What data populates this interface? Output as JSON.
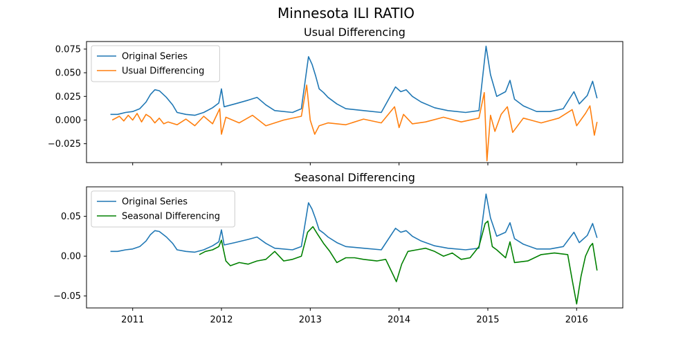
{
  "figure": {
    "suptitle": "Minnesota ILI RATIO"
  },
  "chart_data": [
    {
      "type": "line",
      "title": "Usual Differencing",
      "xlabel": "",
      "ylabel": "",
      "xlim": [
        2010.48,
        2016.52
      ],
      "ylim": [
        -0.045,
        0.083
      ],
      "yticks": [
        -0.025,
        0.0,
        0.025,
        0.05,
        0.075
      ],
      "ytick_labels": [
        "−0.025",
        "0.000",
        "0.025",
        "0.050",
        "0.075"
      ],
      "xticks": [
        2011,
        2012,
        2013,
        2014,
        2015,
        2016
      ],
      "xtick_labels": [
        "2011",
        "2012",
        "2013",
        "2014",
        "2015",
        "2016"
      ],
      "show_xtick_labels": false,
      "grid": false,
      "legend": "top-left",
      "series": [
        {
          "name": "Original Series",
          "color": "#1f77b4",
          "points": [
            [
              2010.75,
              0.006
            ],
            [
              2010.83,
              0.006
            ],
            [
              2010.92,
              0.008
            ],
            [
              2011.0,
              0.009
            ],
            [
              2011.08,
              0.012
            ],
            [
              2011.15,
              0.019
            ],
            [
              2011.2,
              0.027
            ],
            [
              2011.25,
              0.032
            ],
            [
              2011.3,
              0.031
            ],
            [
              2011.38,
              0.024
            ],
            [
              2011.45,
              0.016
            ],
            [
              2011.5,
              0.008
            ],
            [
              2011.6,
              0.006
            ],
            [
              2011.7,
              0.005
            ],
            [
              2011.8,
              0.008
            ],
            [
              2011.9,
              0.013
            ],
            [
              2011.97,
              0.018
            ],
            [
              2012.0,
              0.033
            ],
            [
              2012.03,
              0.014
            ],
            [
              2012.15,
              0.017
            ],
            [
              2012.3,
              0.021
            ],
            [
              2012.4,
              0.024
            ],
            [
              2012.5,
              0.016
            ],
            [
              2012.6,
              0.01
            ],
            [
              2012.8,
              0.008
            ],
            [
              2012.9,
              0.012
            ],
            [
              2012.98,
              0.067
            ],
            [
              2013.02,
              0.059
            ],
            [
              2013.06,
              0.047
            ],
            [
              2013.1,
              0.033
            ],
            [
              2013.15,
              0.029
            ],
            [
              2013.2,
              0.024
            ],
            [
              2013.3,
              0.017
            ],
            [
              2013.4,
              0.012
            ],
            [
              2013.6,
              0.01
            ],
            [
              2013.8,
              0.008
            ],
            [
              2013.96,
              0.035
            ],
            [
              2014.02,
              0.03
            ],
            [
              2014.08,
              0.032
            ],
            [
              2014.15,
              0.025
            ],
            [
              2014.25,
              0.019
            ],
            [
              2014.4,
              0.013
            ],
            [
              2014.55,
              0.01
            ],
            [
              2014.75,
              0.008
            ],
            [
              2014.9,
              0.01
            ],
            [
              2014.98,
              0.078
            ],
            [
              2015.03,
              0.048
            ],
            [
              2015.1,
              0.025
            ],
            [
              2015.2,
              0.03
            ],
            [
              2015.25,
              0.042
            ],
            [
              2015.3,
              0.022
            ],
            [
              2015.4,
              0.015
            ],
            [
              2015.55,
              0.009
            ],
            [
              2015.7,
              0.009
            ],
            [
              2015.85,
              0.012
            ],
            [
              2015.97,
              0.03
            ],
            [
              2016.03,
              0.017
            ],
            [
              2016.12,
              0.026
            ],
            [
              2016.18,
              0.041
            ],
            [
              2016.23,
              0.023
            ]
          ]
        },
        {
          "name": "Usual Differencing",
          "color": "#ff7f0e",
          "points": [
            [
              2010.77,
              0.0
            ],
            [
              2010.85,
              0.004
            ],
            [
              2010.9,
              -0.001
            ],
            [
              2010.95,
              0.005
            ],
            [
              2011.0,
              0.0
            ],
            [
              2011.05,
              0.007
            ],
            [
              2011.1,
              -0.002
            ],
            [
              2011.15,
              0.006
            ],
            [
              2011.2,
              0.003
            ],
            [
              2011.25,
              -0.003
            ],
            [
              2011.3,
              0.002
            ],
            [
              2011.35,
              -0.004
            ],
            [
              2011.4,
              -0.002
            ],
            [
              2011.5,
              -0.005
            ],
            [
              2011.6,
              0.001
            ],
            [
              2011.7,
              -0.006
            ],
            [
              2011.8,
              0.004
            ],
            [
              2011.9,
              -0.004
            ],
            [
              2011.98,
              0.012
            ],
            [
              2012.0,
              -0.015
            ],
            [
              2012.05,
              0.003
            ],
            [
              2012.2,
              -0.003
            ],
            [
              2012.35,
              0.005
            ],
            [
              2012.5,
              -0.006
            ],
            [
              2012.7,
              0.0
            ],
            [
              2012.9,
              0.004
            ],
            [
              2012.96,
              0.037
            ],
            [
              2013.0,
              0.0
            ],
            [
              2013.05,
              -0.015
            ],
            [
              2013.1,
              -0.006
            ],
            [
              2013.2,
              -0.003
            ],
            [
              2013.4,
              -0.005
            ],
            [
              2013.6,
              0.001
            ],
            [
              2013.8,
              -0.003
            ],
            [
              2013.95,
              0.014
            ],
            [
              2014.0,
              -0.008
            ],
            [
              2014.05,
              0.006
            ],
            [
              2014.15,
              -0.004
            ],
            [
              2014.3,
              -0.002
            ],
            [
              2014.5,
              0.003
            ],
            [
              2014.7,
              -0.002
            ],
            [
              2014.9,
              0.002
            ],
            [
              2014.96,
              0.029
            ],
            [
              2014.99,
              -0.043
            ],
            [
              2015.03,
              0.005
            ],
            [
              2015.08,
              -0.012
            ],
            [
              2015.15,
              0.006
            ],
            [
              2015.22,
              0.014
            ],
            [
              2015.28,
              -0.013
            ],
            [
              2015.4,
              0.002
            ],
            [
              2015.6,
              -0.003
            ],
            [
              2015.8,
              0.002
            ],
            [
              2015.95,
              0.011
            ],
            [
              2016.0,
              -0.006
            ],
            [
              2016.1,
              0.007
            ],
            [
              2016.15,
              0.015
            ],
            [
              2016.2,
              -0.016
            ],
            [
              2016.23,
              -0.002
            ]
          ]
        }
      ]
    },
    {
      "type": "line",
      "title": "Seasonal Differencing",
      "xlabel": "",
      "ylabel": "",
      "xlim": [
        2010.48,
        2016.52
      ],
      "ylim": [
        -0.065,
        0.087
      ],
      "yticks": [
        -0.05,
        0.0,
        0.05
      ],
      "ytick_labels": [
        "−0.05",
        "0.00",
        "0.05"
      ],
      "xticks": [
        2011,
        2012,
        2013,
        2014,
        2015,
        2016
      ],
      "xtick_labels": [
        "2011",
        "2012",
        "2013",
        "2014",
        "2015",
        "2016"
      ],
      "show_xtick_labels": true,
      "grid": false,
      "legend": "top-left",
      "series": [
        {
          "name": "Original Series",
          "color": "#1f77b4",
          "points": [
            [
              2010.75,
              0.006
            ],
            [
              2010.83,
              0.006
            ],
            [
              2010.92,
              0.008
            ],
            [
              2011.0,
              0.009
            ],
            [
              2011.08,
              0.012
            ],
            [
              2011.15,
              0.019
            ],
            [
              2011.2,
              0.027
            ],
            [
              2011.25,
              0.032
            ],
            [
              2011.3,
              0.031
            ],
            [
              2011.38,
              0.024
            ],
            [
              2011.45,
              0.016
            ],
            [
              2011.5,
              0.008
            ],
            [
              2011.6,
              0.006
            ],
            [
              2011.7,
              0.005
            ],
            [
              2011.8,
              0.008
            ],
            [
              2011.9,
              0.013
            ],
            [
              2011.97,
              0.018
            ],
            [
              2012.0,
              0.033
            ],
            [
              2012.03,
              0.014
            ],
            [
              2012.15,
              0.017
            ],
            [
              2012.3,
              0.021
            ],
            [
              2012.4,
              0.024
            ],
            [
              2012.5,
              0.016
            ],
            [
              2012.6,
              0.01
            ],
            [
              2012.8,
              0.008
            ],
            [
              2012.9,
              0.012
            ],
            [
              2012.98,
              0.067
            ],
            [
              2013.02,
              0.059
            ],
            [
              2013.06,
              0.047
            ],
            [
              2013.1,
              0.033
            ],
            [
              2013.15,
              0.029
            ],
            [
              2013.2,
              0.024
            ],
            [
              2013.3,
              0.017
            ],
            [
              2013.4,
              0.012
            ],
            [
              2013.6,
              0.01
            ],
            [
              2013.8,
              0.008
            ],
            [
              2013.96,
              0.035
            ],
            [
              2014.02,
              0.03
            ],
            [
              2014.08,
              0.032
            ],
            [
              2014.15,
              0.025
            ],
            [
              2014.25,
              0.019
            ],
            [
              2014.4,
              0.013
            ],
            [
              2014.55,
              0.01
            ],
            [
              2014.75,
              0.008
            ],
            [
              2014.9,
              0.01
            ],
            [
              2014.98,
              0.078
            ],
            [
              2015.03,
              0.048
            ],
            [
              2015.1,
              0.025
            ],
            [
              2015.2,
              0.03
            ],
            [
              2015.25,
              0.042
            ],
            [
              2015.3,
              0.022
            ],
            [
              2015.4,
              0.015
            ],
            [
              2015.55,
              0.009
            ],
            [
              2015.7,
              0.009
            ],
            [
              2015.85,
              0.012
            ],
            [
              2015.97,
              0.03
            ],
            [
              2016.03,
              0.017
            ],
            [
              2016.12,
              0.026
            ],
            [
              2016.18,
              0.041
            ],
            [
              2016.23,
              0.023
            ]
          ]
        },
        {
          "name": "Seasonal Differencing",
          "color": "#008000",
          "points": [
            [
              2011.75,
              0.002
            ],
            [
              2011.82,
              0.006
            ],
            [
              2011.9,
              0.008
            ],
            [
              2011.97,
              0.012
            ],
            [
              2012.0,
              0.02
            ],
            [
              2012.05,
              -0.006
            ],
            [
              2012.1,
              -0.012
            ],
            [
              2012.2,
              -0.008
            ],
            [
              2012.3,
              -0.01
            ],
            [
              2012.4,
              -0.006
            ],
            [
              2012.5,
              -0.004
            ],
            [
              2012.6,
              0.006
            ],
            [
              2012.7,
              -0.006
            ],
            [
              2012.8,
              -0.004
            ],
            [
              2012.9,
              0.0
            ],
            [
              2012.97,
              0.03
            ],
            [
              2013.03,
              0.037
            ],
            [
              2013.08,
              0.028
            ],
            [
              2013.15,
              0.016
            ],
            [
              2013.22,
              0.006
            ],
            [
              2013.3,
              -0.008
            ],
            [
              2013.4,
              -0.002
            ],
            [
              2013.5,
              -0.002
            ],
            [
              2013.6,
              -0.004
            ],
            [
              2013.75,
              -0.006
            ],
            [
              2013.85,
              -0.004
            ],
            [
              2013.97,
              -0.032
            ],
            [
              2014.03,
              -0.01
            ],
            [
              2014.1,
              0.006
            ],
            [
              2014.2,
              0.008
            ],
            [
              2014.3,
              0.01
            ],
            [
              2014.4,
              0.006
            ],
            [
              2014.5,
              0.0
            ],
            [
              2014.6,
              0.004
            ],
            [
              2014.7,
              -0.004
            ],
            [
              2014.8,
              -0.002
            ],
            [
              2014.9,
              0.012
            ],
            [
              2014.97,
              0.041
            ],
            [
              2015.0,
              0.044
            ],
            [
              2015.05,
              0.012
            ],
            [
              2015.1,
              0.008
            ],
            [
              2015.2,
              -0.002
            ],
            [
              2015.25,
              0.018
            ],
            [
              2015.3,
              -0.008
            ],
            [
              2015.45,
              -0.006
            ],
            [
              2015.6,
              0.002
            ],
            [
              2015.75,
              0.004
            ],
            [
              2015.9,
              0.002
            ],
            [
              2015.95,
              -0.03
            ],
            [
              2016.0,
              -0.06
            ],
            [
              2016.05,
              -0.025
            ],
            [
              2016.1,
              0.0
            ],
            [
              2016.15,
              0.012
            ],
            [
              2016.18,
              0.016
            ],
            [
              2016.23,
              -0.018
            ]
          ]
        }
      ]
    }
  ]
}
